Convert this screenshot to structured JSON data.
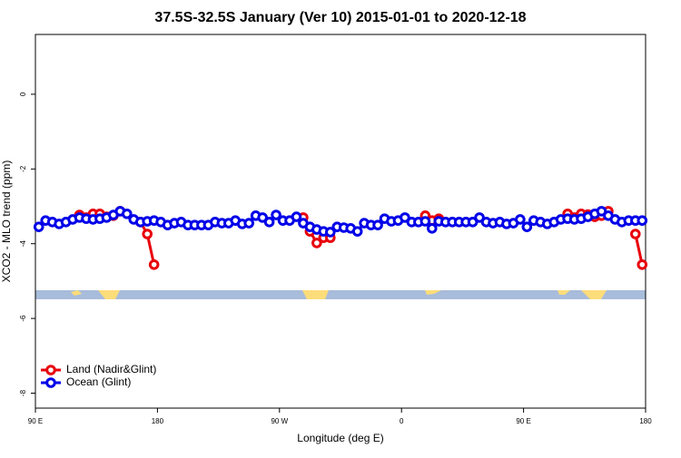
{
  "chart_data": {
    "type": "line",
    "title": "37.5S-32.5S January (Ver 10)   2015-01-01 to 2020-12-18",
    "xlabel": "Longitude (deg E)",
    "ylabel": "XCO2 - MLO trend (ppm)",
    "x": [
      92.5,
      97.5,
      102.5,
      107.5,
      112.5,
      117.5,
      122.5,
      127.5,
      132.5,
      137.5,
      142.5,
      147.5,
      152.5,
      157.5,
      162.5,
      167.5,
      172.5,
      177.5,
      182.5,
      187.5,
      192.5,
      197.5,
      202.5,
      207.5,
      212.5,
      217.5,
      222.5,
      227.5,
      232.5,
      237.5,
      242.5,
      247.5,
      252.5,
      257.5,
      262.5,
      267.5,
      272.5,
      277.5,
      282.5,
      287.5,
      292.5,
      297.5,
      302.5,
      307.5,
      312.5,
      317.5,
      322.5,
      327.5,
      332.5,
      337.5,
      342.5,
      347.5,
      352.5,
      357.5,
      362.5,
      367.5,
      372.5,
      377.5,
      382.5,
      387.5,
      392.5,
      397.5,
      402.5,
      407.5,
      412.5,
      417.5,
      422.5,
      427.5,
      432.5,
      437.5,
      442.5,
      447.5,
      452.5,
      457.5,
      462.5,
      467.5,
      472.5,
      477.5,
      482.5,
      487.5,
      492.5,
      497.5,
      502.5,
      507.5,
      512.5,
      517.5,
      522.5,
      527.5,
      532.5,
      537.5
    ],
    "series": [
      {
        "name": "Land (Nadir&Glint)",
        "color": "#e8000b",
        "values": [
          null,
          null,
          null,
          null,
          null,
          null,
          -3.23,
          -3.3,
          -3.2,
          -3.2,
          -3.28,
          -3.25,
          -3.13,
          null,
          null,
          -3.42,
          -3.74,
          -4.56,
          null,
          null,
          null,
          null,
          null,
          null,
          null,
          null,
          null,
          null,
          null,
          null,
          null,
          null,
          null,
          null,
          null,
          null,
          null,
          null,
          null,
          -3.3,
          -3.67,
          -3.98,
          -3.84,
          -3.84,
          null,
          null,
          null,
          null,
          null,
          null,
          null,
          null,
          null,
          null,
          null,
          null,
          null,
          -3.25,
          -3.38,
          -3.33,
          null,
          null,
          null,
          null,
          null,
          null,
          null,
          null,
          null,
          null,
          null,
          null,
          null,
          null,
          null,
          null,
          null,
          null,
          -3.2,
          -3.3,
          -3.2,
          -3.22,
          -3.28,
          -3.25,
          -3.13,
          null,
          null,
          null,
          -3.74,
          -4.56
        ]
      },
      {
        "name": "Ocean (Glint)",
        "color": "#0000e8",
        "values": [
          -3.55,
          -3.38,
          -3.42,
          -3.47,
          -3.42,
          -3.35,
          -3.3,
          -3.33,
          -3.35,
          -3.33,
          -3.3,
          -3.23,
          -3.13,
          -3.2,
          -3.35,
          -3.42,
          -3.4,
          -3.38,
          -3.42,
          -3.5,
          -3.45,
          -3.42,
          -3.5,
          -3.5,
          -3.5,
          -3.5,
          -3.42,
          -3.45,
          -3.45,
          -3.38,
          -3.47,
          -3.45,
          -3.25,
          -3.3,
          -3.42,
          -3.23,
          -3.38,
          -3.38,
          -3.28,
          -3.45,
          -3.55,
          -3.62,
          -3.67,
          -3.69,
          -3.55,
          -3.57,
          -3.59,
          -3.67,
          -3.45,
          -3.5,
          -3.5,
          -3.33,
          -3.4,
          -3.38,
          -3.3,
          -3.42,
          -3.42,
          -3.4,
          -3.59,
          -3.4,
          -3.42,
          -3.42,
          -3.42,
          -3.42,
          -3.42,
          -3.3,
          -3.42,
          -3.45,
          -3.42,
          -3.47,
          -3.45,
          -3.35,
          -3.55,
          -3.38,
          -3.42,
          -3.47,
          -3.42,
          -3.35,
          -3.33,
          -3.35,
          -3.33,
          -3.28,
          -3.2,
          -3.13,
          -3.25,
          -3.35,
          -3.42,
          -3.38,
          -3.38,
          -3.38
        ]
      }
    ],
    "xlim": [
      90,
      540
    ],
    "xticks": [
      {
        "value": 90,
        "label": "90 E"
      },
      180,
      {
        "value": 270,
        "label": "90 W"
      },
      {
        "value": 360,
        "label": "0"
      },
      {
        "value": 450,
        "label": "90 E"
      },
      {
        "value": 540,
        "label": "180"
      }
    ],
    "ylim": [
      -8.4,
      1.6
    ],
    "yticks": [
      0,
      -2,
      -4,
      -6,
      -8
    ],
    "legend": "bottom-left"
  }
}
